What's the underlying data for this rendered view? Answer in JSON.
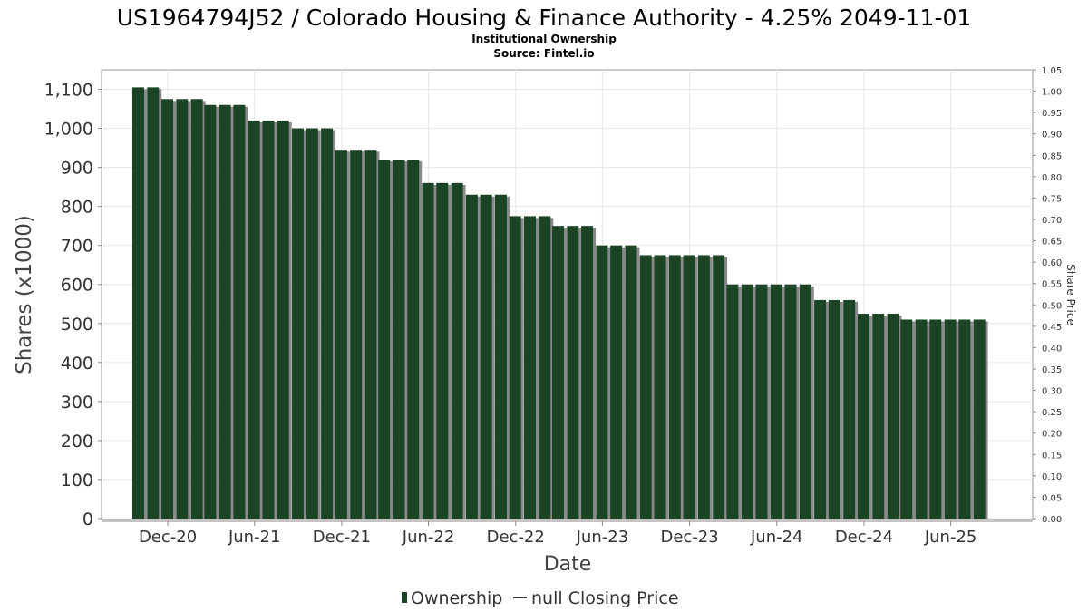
{
  "chart_data": {
    "type": "bar",
    "title": "US1964794J52 / Colorado Housing & Finance Authority - 4.25% 2049-11-01",
    "subtitle": "Institutional Ownership",
    "source": "Source: Fintel.io",
    "xlabel": "Date",
    "ylabel": "Shares (x1000)",
    "y2label": "Share Price",
    "ylim": [
      0,
      1150
    ],
    "y2lim": [
      0,
      1.05
    ],
    "x_range": [
      "2020-07-15",
      "2025-11-20"
    ],
    "yticks": [
      "0",
      "100",
      "200",
      "300",
      "400",
      "500",
      "600",
      "700",
      "800",
      "900",
      "1,000",
      "1,100"
    ],
    "y2ticks": [
      "0.00",
      "0.05",
      "0.10",
      "0.15",
      "0.20",
      "0.25",
      "0.30",
      "0.35",
      "0.40",
      "0.45",
      "0.50",
      "0.55",
      "0.60",
      "0.65",
      "0.70",
      "0.75",
      "0.80",
      "0.85",
      "0.90",
      "0.95",
      "1.00",
      "1.05"
    ],
    "xticks": [
      "Dec-20",
      "Jun-21",
      "Dec-21",
      "Jun-22",
      "Dec-22",
      "Jun-23",
      "Dec-23",
      "Jun-24",
      "Dec-24",
      "Jun-25"
    ],
    "grid": true,
    "legend_position": "bottom",
    "bar_color": "#1b4424",
    "series": [
      {
        "name": "Ownership",
        "dates": [
          "2020-09-30",
          "2020-10-31",
          "2020-11-30",
          "2020-12-31",
          "2021-01-31",
          "2021-02-28",
          "2021-03-31",
          "2021-04-30",
          "2021-05-31",
          "2021-06-30",
          "2021-07-31",
          "2021-08-31",
          "2021-09-30",
          "2021-10-31",
          "2021-11-30",
          "2021-12-31",
          "2022-01-31",
          "2022-02-28",
          "2022-03-31",
          "2022-04-30",
          "2022-05-31",
          "2022-06-30",
          "2022-07-31",
          "2022-08-31",
          "2022-09-30",
          "2022-10-31",
          "2022-11-30",
          "2022-12-31",
          "2023-01-31",
          "2023-02-28",
          "2023-03-31",
          "2023-04-30",
          "2023-05-31",
          "2023-06-30",
          "2023-07-31",
          "2023-08-31",
          "2023-09-30",
          "2023-10-31",
          "2023-11-30",
          "2023-12-31",
          "2024-01-31",
          "2024-02-29",
          "2024-03-31",
          "2024-04-30",
          "2024-05-31",
          "2024-06-30",
          "2024-07-31",
          "2024-08-31",
          "2024-09-30",
          "2024-10-31",
          "2024-11-30",
          "2024-12-31",
          "2025-01-31",
          "2025-02-28",
          "2025-03-31",
          "2025-04-30",
          "2025-05-31",
          "2025-06-30",
          "2025-07-31"
        ],
        "values": [
          1105,
          1105,
          1075,
          1075,
          1075,
          1060,
          1060,
          1060,
          1020,
          1020,
          1020,
          1000,
          1000,
          1000,
          945,
          945,
          945,
          920,
          920,
          920,
          860,
          860,
          860,
          830,
          830,
          830,
          775,
          775,
          775,
          750,
          750,
          750,
          700,
          700,
          700,
          675,
          675,
          675,
          675,
          675,
          675,
          600,
          600,
          600,
          600,
          600,
          600,
          560,
          560,
          560,
          525,
          525,
          525,
          510,
          510,
          510,
          510,
          510,
          510
        ]
      }
    ],
    "legend": [
      {
        "label": "Ownership",
        "marker": "bar"
      },
      {
        "label": "null Closing Price",
        "marker": "line"
      }
    ]
  }
}
